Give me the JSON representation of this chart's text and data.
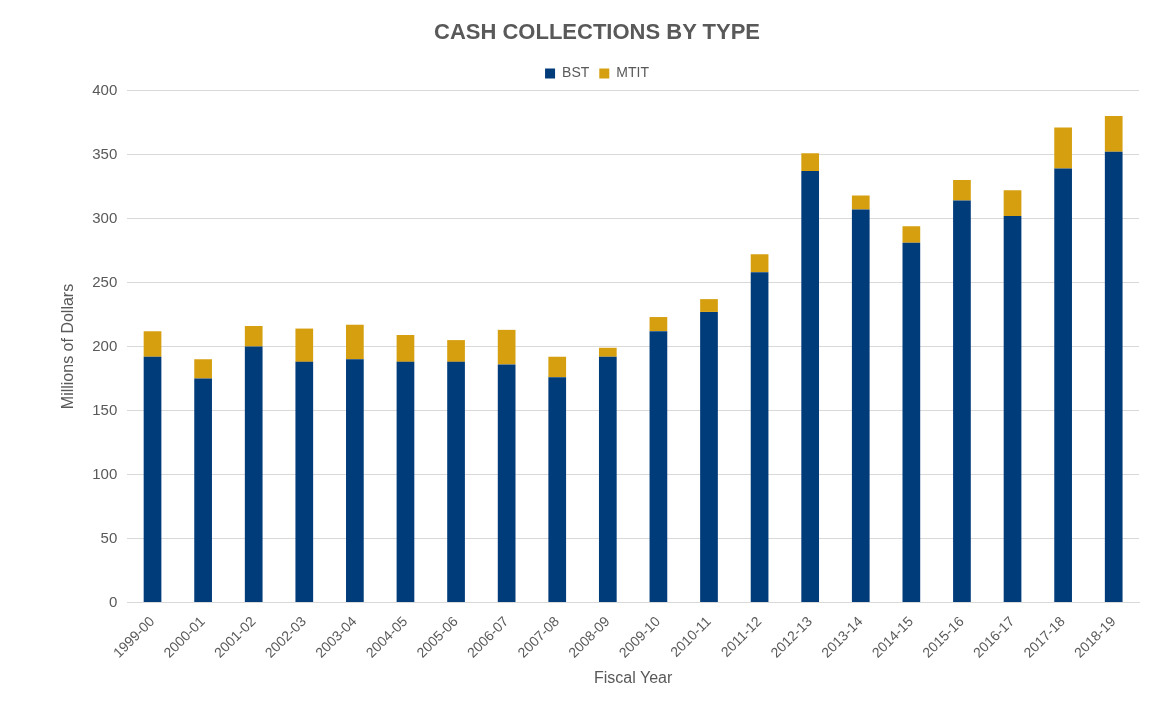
{
  "chart_data": {
    "type": "bar",
    "title": "CASH COLLECTIONS BY TYPE",
    "xlabel": "Fiscal Year",
    "ylabel": "Millions of Dollars",
    "categories": [
      "1999-00",
      "2000-01",
      "2001-02",
      "2002-03",
      "2003-04",
      "2004-05",
      "2005-06",
      "2006-07",
      "2007-08",
      "2008-09",
      "2009-10",
      "2010-11",
      "2011-12",
      "2012-13",
      "2013-14",
      "2014-15",
      "2015-16",
      "2016-17",
      "2017-18",
      "2018-19"
    ],
    "stacked": true,
    "series": [
      {
        "name": "BST",
        "color": "#003b7a",
        "values": [
          192,
          175,
          200,
          188,
          190,
          188,
          188,
          186,
          176,
          192,
          212,
          227,
          258,
          337,
          307,
          281,
          314,
          302,
          339,
          352
        ]
      },
      {
        "name": "MTIT",
        "color": "#d59f0f",
        "values": [
          20,
          15,
          16,
          26,
          27,
          21,
          17,
          27,
          16,
          7,
          11,
          10,
          14,
          14,
          11,
          13,
          16,
          20,
          32,
          28
        ]
      }
    ],
    "ylim": [
      0,
      400
    ],
    "yticks": [
      0,
      50,
      100,
      150,
      200,
      250,
      300,
      350,
      400
    ],
    "grid": "y",
    "legend": "top"
  }
}
